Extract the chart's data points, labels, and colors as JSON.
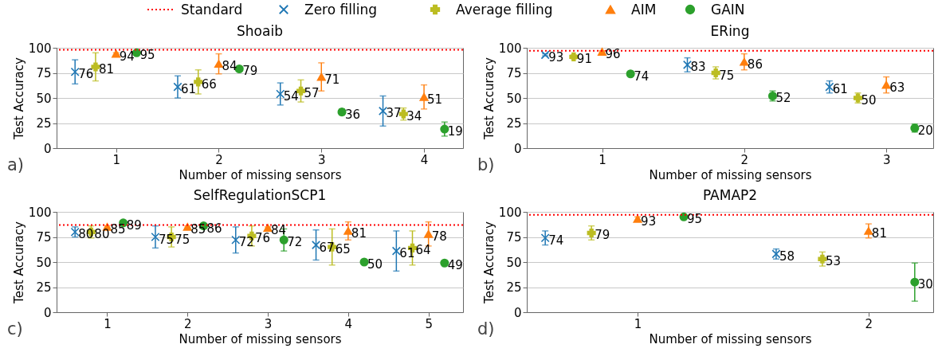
{
  "chart_data": [
    {
      "type": "scatter",
      "title": "Shoaib",
      "xlabel": "Number of missing sensors",
      "ylabel": "Test Accuracy",
      "xlim": [
        0.42,
        4.38
      ],
      "xticks": [
        1,
        2,
        3,
        4
      ],
      "ylim": [
        0,
        100
      ],
      "yticks": [
        0,
        25,
        50,
        75,
        100
      ],
      "grid": "y",
      "legend": "top",
      "data_labels": true,
      "annotations": [
        "a)"
      ],
      "ref_lines": [
        {
          "axis": "y",
          "value": 98,
          "label": "Standard",
          "color": "#ff0000",
          "line_style": "dotted"
        }
      ],
      "series": [
        {
          "name": "Zero filling",
          "color": "#1f77b4",
          "marker": "cross",
          "x": [
            0.6,
            1.6,
            2.6,
            3.6
          ],
          "values": [
            76,
            61,
            54,
            37
          ],
          "errors": [
            12,
            11,
            11,
            15
          ]
        },
        {
          "name": "Average filling",
          "color": "#bcbd22",
          "marker": "plus",
          "x": [
            0.8,
            1.8,
            2.8,
            3.8
          ],
          "values": [
            81,
            66,
            57,
            34
          ],
          "errors": [
            14,
            12,
            11,
            6
          ]
        },
        {
          "name": "AIM",
          "color": "#ff7f0e",
          "marker": "triangle",
          "x": [
            1,
            2,
            3,
            4
          ],
          "values": [
            94,
            84,
            71,
            51
          ],
          "errors": [
            1,
            10,
            14,
            12
          ]
        },
        {
          "name": "GAIN",
          "color": "#2ca02c",
          "marker": "circle",
          "x": [
            1.2,
            2.2,
            3.2,
            4.2
          ],
          "values": [
            95,
            79,
            36,
            19
          ],
          "errors": [
            1,
            2,
            3,
            7
          ]
        }
      ]
    },
    {
      "type": "scatter",
      "title": "ERing",
      "xlabel": "Number of missing sensors",
      "ylabel": "Test Accuracy",
      "xlim": [
        0.47,
        3.33
      ],
      "xticks": [
        1,
        2,
        3
      ],
      "ylim": [
        0,
        100
      ],
      "yticks": [
        0,
        25,
        50,
        75,
        100
      ],
      "grid": "y",
      "data_labels": true,
      "annotations": [
        "b)"
      ],
      "ref_lines": [
        {
          "axis": "y",
          "value": 97,
          "color": "#ff0000",
          "line_style": "dotted"
        }
      ],
      "series": [
        {
          "color": "#1f77b4",
          "marker": "cross",
          "x": [
            0.6,
            1.6,
            2.6
          ],
          "values": [
            93,
            83,
            61
          ],
          "errors": [
            1,
            7,
            6
          ]
        },
        {
          "color": "#bcbd22",
          "marker": "plus",
          "x": [
            0.8,
            1.8,
            2.8
          ],
          "values": [
            91,
            75,
            50
          ],
          "errors": [
            2,
            6,
            5
          ]
        },
        {
          "color": "#ff7f0e",
          "marker": "triangle",
          "x": [
            1,
            2,
            3
          ],
          "values": [
            96,
            86,
            63
          ],
          "errors": [
            1,
            8,
            8
          ]
        },
        {
          "color": "#2ca02c",
          "marker": "circle",
          "x": [
            1.2,
            2.2,
            3.2
          ],
          "values": [
            74,
            52,
            20
          ],
          "errors": [
            2,
            5,
            4
          ]
        }
      ]
    },
    {
      "type": "scatter",
      "title": "SelfRegulationSCP1",
      "xlabel": "Number of missing sensors",
      "ylabel": "Test Accuracy",
      "xlim": [
        0.37,
        5.43
      ],
      "xticks": [
        1,
        2,
        3,
        4,
        5
      ],
      "ylim": [
        0,
        100
      ],
      "yticks": [
        0,
        25,
        50,
        75,
        100
      ],
      "grid": "y",
      "data_labels": true,
      "annotations": [
        "c)"
      ],
      "ref_lines": [
        {
          "axis": "y",
          "value": 87,
          "color": "#ff0000",
          "line_style": "dotted"
        }
      ],
      "series": [
        {
          "color": "#1f77b4",
          "marker": "cross",
          "x": [
            0.6,
            1.6,
            2.6,
            3.6,
            4.6
          ],
          "values": [
            80,
            75,
            72,
            67,
            61
          ],
          "errors": [
            5,
            11,
            13,
            15,
            20
          ]
        },
        {
          "color": "#bcbd22",
          "marker": "plus",
          "x": [
            0.8,
            1.8,
            2.8,
            3.8,
            4.8
          ],
          "values": [
            80,
            75,
            76,
            65,
            64
          ],
          "errors": [
            6,
            10,
            10,
            18,
            17
          ]
        },
        {
          "color": "#ff7f0e",
          "marker": "triangle",
          "x": [
            1,
            2,
            3,
            4,
            5
          ],
          "values": [
            85,
            85,
            84,
            81,
            78
          ],
          "errors": [
            1,
            1,
            1,
            9,
            12
          ]
        },
        {
          "color": "#2ca02c",
          "marker": "circle",
          "x": [
            1.2,
            2.2,
            3.2,
            4.2,
            5.2
          ],
          "values": [
            89,
            86,
            72,
            50,
            49
          ],
          "errors": [
            2,
            2,
            11,
            1,
            1
          ]
        }
      ]
    },
    {
      "type": "scatter",
      "title": "PAMAP2",
      "xlabel": "Number of missing sensors",
      "ylabel": "Test Accuracy",
      "xlim": [
        0.52,
        2.28
      ],
      "xticks": [
        1,
        2
      ],
      "ylim": [
        0,
        100
      ],
      "yticks": [
        0,
        25,
        50,
        75,
        100
      ],
      "grid": "y",
      "data_labels": true,
      "annotations": [
        "d)"
      ],
      "ref_lines": [
        {
          "axis": "y",
          "value": 97,
          "color": "#ff0000",
          "line_style": "dotted"
        }
      ],
      "series": [
        {
          "color": "#1f77b4",
          "marker": "cross",
          "x": [
            0.6,
            1.6
          ],
          "values": [
            74,
            58
          ],
          "errors": [
            7,
            5
          ]
        },
        {
          "color": "#bcbd22",
          "marker": "plus",
          "x": [
            0.8,
            1.8
          ],
          "values": [
            79,
            53
          ],
          "errors": [
            7,
            7
          ]
        },
        {
          "color": "#ff7f0e",
          "marker": "triangle",
          "x": [
            1,
            2
          ],
          "values": [
            93,
            81
          ],
          "errors": [
            2,
            7
          ]
        },
        {
          "color": "#2ca02c",
          "marker": "circle",
          "x": [
            1.2,
            2.2
          ],
          "values": [
            95,
            30
          ],
          "errors": [
            1,
            19
          ]
        }
      ]
    }
  ]
}
